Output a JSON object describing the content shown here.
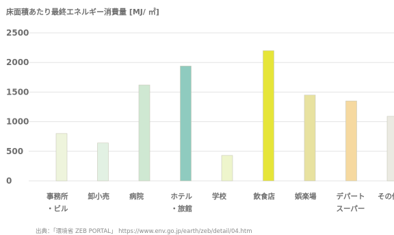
{
  "chart_data": {
    "type": "bar",
    "title": "床面積あたり最終エネルギー消費量 [MJ/ ㎡]",
    "categories": [
      "事務所\n・ビル",
      "卸小売",
      "病院",
      "ホテル\n・旅館",
      "学校",
      "飲食店",
      "娯楽場",
      "デパート\nスーパー",
      "その他"
    ],
    "values": [
      800,
      640,
      1620,
      1940,
      430,
      2200,
      1450,
      1350,
      1090
    ],
    "colors": [
      "#eef4dc",
      "#e2f1e3",
      "#cfe8d2",
      "#8fcbbf",
      "#eef5cc",
      "#e6e539",
      "#e8e2a0",
      "#f6d9a0",
      "#ebeae2"
    ],
    "ylim": [
      0,
      2500
    ],
    "yticks": [
      0,
      500,
      1000,
      1500,
      2000,
      2500
    ],
    "grid": true,
    "xlabel": "",
    "ylabel": ""
  },
  "source": "出典：「環境省 ZEB PORTAL」 https://www.env.go.jp/earth/zeb/detail/04.htm"
}
